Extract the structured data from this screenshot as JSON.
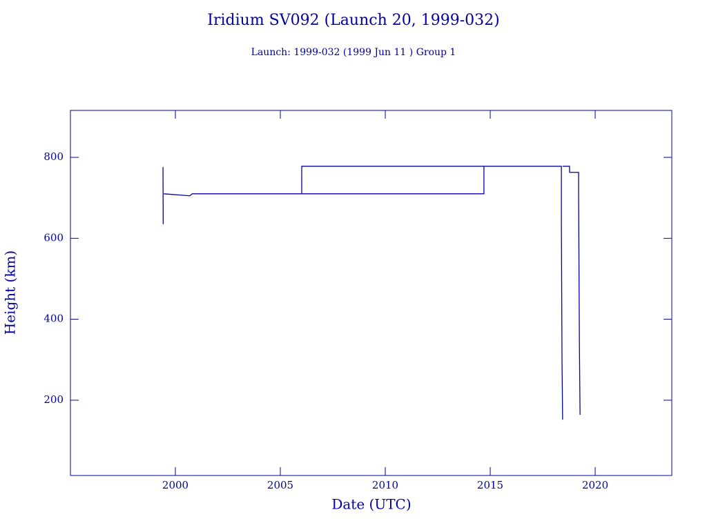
{
  "chart_data": {
    "type": "line",
    "title": "Iridium SV092 (Launch 20, 1999-032)",
    "subtitle": "Launch: 1999-032  (1999 Jun 11 )  Group 1",
    "xlabel": "Date (UTC)",
    "ylabel": "Height (km)",
    "x": [
      1999.41,
      1999.42,
      null,
      1999.45,
      2000.69,
      2000.8,
      2014.7,
      2014.7,
      2018.39,
      2018.39,
      2018.42,
      2018.45,
      null,
      2006.02,
      2006.02,
      2014.7,
      null,
      2018.45,
      2018.78,
      2018.78,
      2019.21,
      2019.21,
      2019.25,
      2019.28
    ],
    "series": [
      {
        "color": "#0000a0",
        "values": [
          776,
          635,
          null,
          710,
          705,
          710,
          710,
          778,
          778,
          640,
          300,
          152,
          null,
          710,
          778,
          778,
          null,
          778,
          778,
          763,
          763,
          715,
          330,
          164
        ]
      }
    ],
    "xlim": [
      1995,
      2023.65
    ],
    "xticks": [
      2000,
      2005,
      2010,
      2015,
      2020
    ],
    "ylim": [
      14,
      916
    ],
    "yticks": [
      200,
      400,
      600,
      800
    ]
  }
}
